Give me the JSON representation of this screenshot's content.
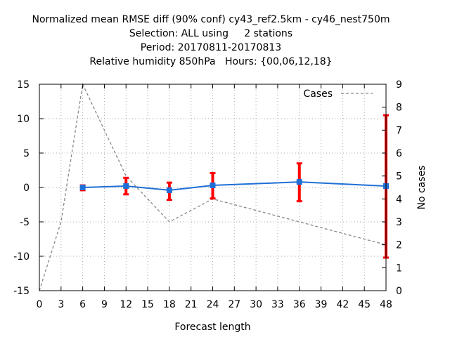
{
  "chart_data": {
    "type": "line",
    "title_lines": [
      "Normalized mean RMSE diff (90% conf) cy43_ref2.5km - cy46_nest750m",
      "Selection: ALL using     2 stations",
      "Period: 20170811-20170813",
      "Relative humidity 850hPa   Hours: {00,06,12,18}"
    ],
    "xlabel": "Forecast length",
    "y2label": "No cases",
    "xlim": [
      0,
      48
    ],
    "ylim": [
      -15,
      15
    ],
    "y2lim": [
      0,
      9
    ],
    "xticks": [
      0,
      3,
      6,
      9,
      12,
      15,
      18,
      21,
      24,
      27,
      30,
      33,
      36,
      39,
      42,
      45,
      48
    ],
    "yticks": [
      -15,
      -10,
      -5,
      0,
      5,
      10,
      15
    ],
    "y2ticks": [
      0,
      1,
      2,
      3,
      4,
      5,
      6,
      7,
      8,
      9
    ],
    "grid": true,
    "legend_position": "top-right",
    "series": [
      {
        "role": "rmse-diff",
        "color": "#1f6fd6",
        "x": [
          6,
          12,
          18,
          24,
          36,
          48
        ],
        "y": [
          0.0,
          0.2,
          -0.4,
          0.3,
          0.8,
          0.2
        ],
        "err_low": [
          -0.4,
          -1.0,
          -1.8,
          -1.6,
          -2.0,
          -10.2
        ],
        "err_high": [
          0.3,
          1.4,
          0.7,
          2.1,
          3.5,
          10.5
        ],
        "error_color": "#ff0000"
      },
      {
        "name": "Cases",
        "axis": "y2",
        "color": "#888888",
        "style": "dashed",
        "x": [
          0,
          3,
          6,
          12,
          18,
          24,
          36,
          48
        ],
        "y": [
          0,
          3,
          9,
          5,
          3,
          4,
          3,
          2
        ]
      }
    ]
  }
}
